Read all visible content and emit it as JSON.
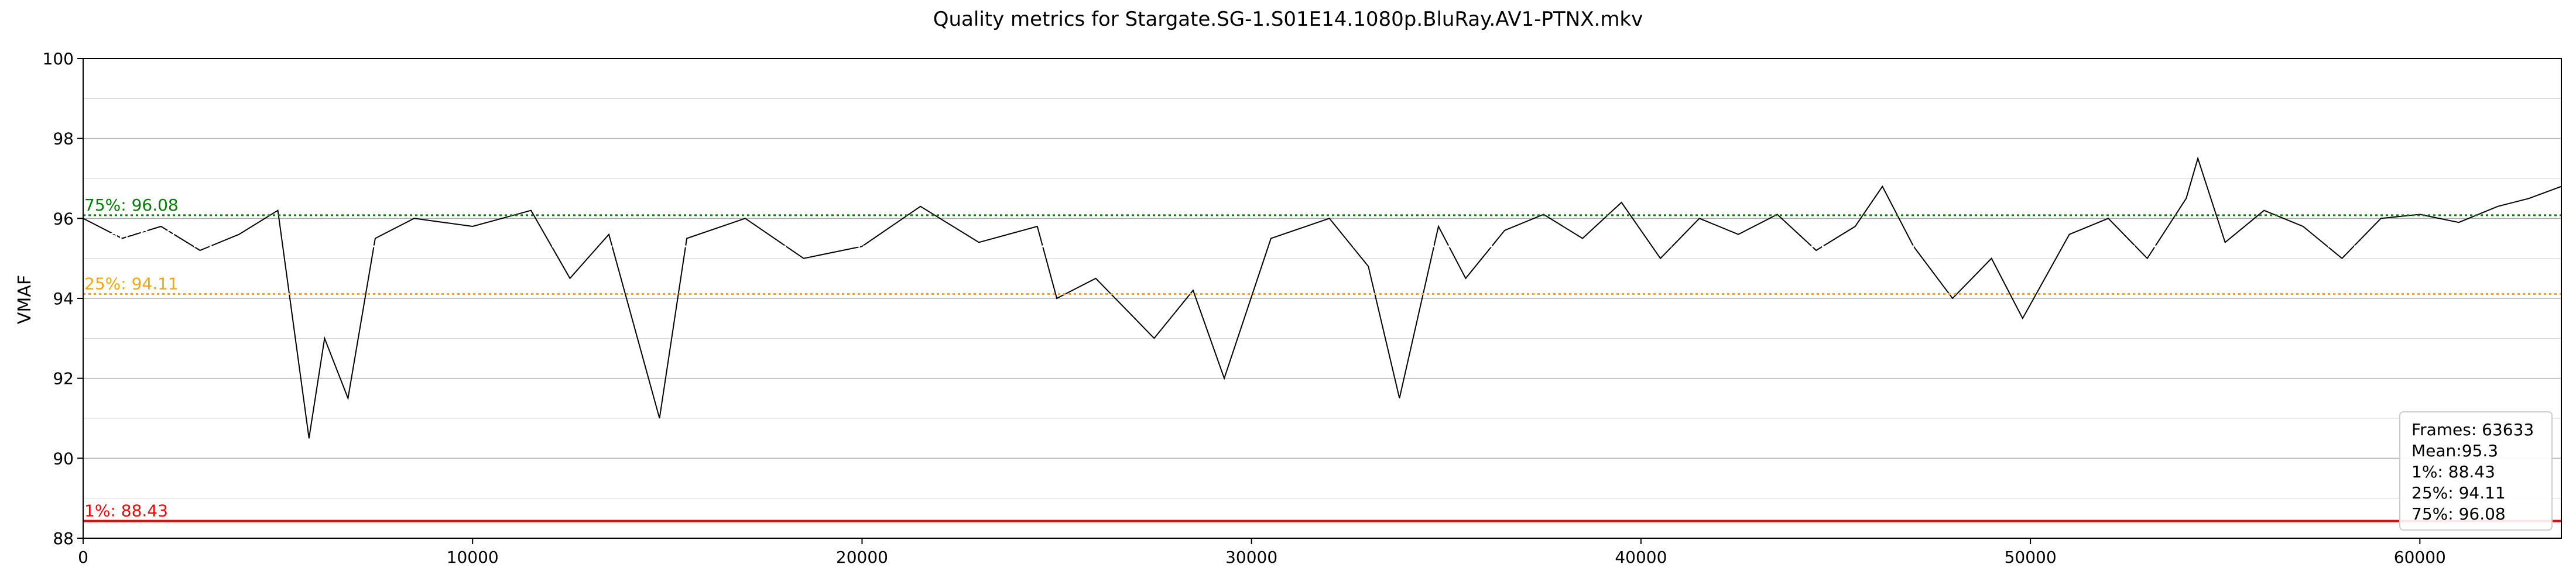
{
  "chart_data": {
    "type": "line",
    "title": "Quality metrics for Stargate.SG-1.S01E14.1080p.BluRay.AV1-PTNX.mkv",
    "xlabel": "",
    "ylabel": "VMAF",
    "xlim": [
      0,
      63633
    ],
    "ylim": [
      88,
      100
    ],
    "x_ticks": [
      0,
      10000,
      20000,
      30000,
      40000,
      50000,
      60000
    ],
    "y_ticks": [
      88,
      90,
      92,
      94,
      96,
      98,
      100
    ],
    "grid": true,
    "series": [
      {
        "color": "#000000",
        "x": [
          0,
          1000,
          2000,
          3000,
          4000,
          5000,
          5800,
          6200,
          6800,
          7500,
          8500,
          10000,
          11500,
          12500,
          13500,
          14800,
          15500,
          17000,
          18500,
          20000,
          21500,
          23000,
          24500,
          25000,
          26000,
          27500,
          28500,
          29300,
          30500,
          32000,
          33000,
          33800,
          34800,
          35500,
          36500,
          37500,
          38500,
          39500,
          40500,
          41500,
          42500,
          43500,
          44500,
          45500,
          46200,
          47000,
          48000,
          49000,
          49800,
          51000,
          52000,
          53000,
          54000,
          54300,
          55000,
          56000,
          57000,
          58000,
          59000,
          60000,
          61000,
          62000,
          62800,
          63633
        ],
        "y": [
          96.0,
          95.5,
          95.8,
          95.2,
          95.6,
          96.2,
          90.5,
          93.0,
          91.5,
          95.5,
          96.0,
          95.8,
          96.2,
          94.5,
          95.6,
          91.0,
          95.5,
          96.0,
          95.0,
          95.3,
          96.3,
          95.4,
          95.8,
          94.0,
          94.5,
          93.0,
          94.2,
          92.0,
          95.5,
          96.0,
          94.8,
          91.5,
          95.8,
          94.5,
          95.7,
          96.1,
          95.5,
          96.4,
          95.0,
          96.0,
          95.6,
          96.1,
          95.2,
          95.8,
          96.8,
          95.3,
          94.0,
          95.0,
          93.5,
          95.6,
          96.0,
          95.0,
          96.5,
          97.5,
          95.4,
          96.2,
          95.8,
          95.0,
          96.0,
          96.1,
          95.9,
          96.3,
          96.5,
          96.8
        ]
      }
    ],
    "reference_lines": [
      {
        "label": "75%: 96.08",
        "value": 96.08,
        "color": "#008000",
        "style": "dotted"
      },
      {
        "label": "Mean: 95.3",
        "value": 95.3,
        "color": "#ffffff",
        "style": "dotted"
      },
      {
        "label": "25%: 94.11",
        "value": 94.11,
        "color": "#ffa500",
        "style": "dotted"
      },
      {
        "label": "1%: 88.43",
        "value": 88.43,
        "color": "#ff0000",
        "style": "solid"
      }
    ],
    "legend": {
      "placement": "bottom-right",
      "lines": [
        "Frames: 63633",
        "Mean:95.3",
        "1%: 88.43",
        "25%: 94.11",
        "75%: 96.08"
      ]
    }
  }
}
